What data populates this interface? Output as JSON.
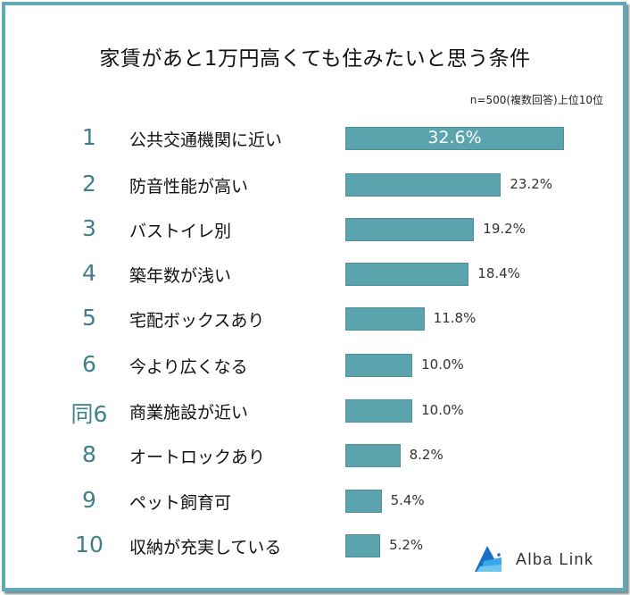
{
  "chart_data": {
    "type": "bar",
    "orientation": "horizontal",
    "title": "家賃があと1万円高くても住みたいと思う条件",
    "subtitle": "n=500(複数回答)上位10位",
    "ranks": [
      "1",
      "2",
      "3",
      "4",
      "5",
      "6",
      "同6",
      "8",
      "9",
      "10"
    ],
    "categories": [
      "公共交通機関に近い",
      "防音性能が高い",
      "バストイレ別",
      "築年数が浅い",
      "宅配ボックスあり",
      "今より広くなる",
      "商業施設が近い",
      "オートロックあり",
      "ペット飼育可",
      "収納が充実している"
    ],
    "values": [
      32.6,
      23.2,
      19.2,
      18.4,
      11.8,
      10.0,
      10.0,
      8.2,
      5.4,
      5.2
    ],
    "value_labels": [
      "32.6%",
      "23.2%",
      "19.2%",
      "18.4%",
      "11.8%",
      "10.0%",
      "10.0%",
      "8.2%",
      "5.4%",
      "5.2%"
    ],
    "bar_color": "#5ba3ad",
    "rank_color": "#3f7f8c"
  },
  "brand": {
    "name": "Alba Link"
  }
}
